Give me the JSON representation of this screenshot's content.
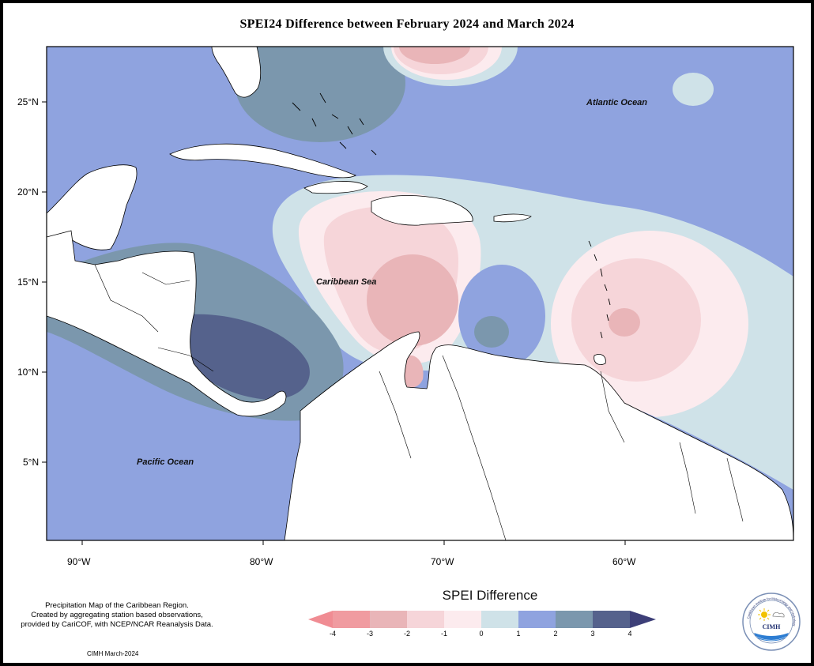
{
  "title": "SPEI24 Difference between February 2024 and March 2024",
  "axes": {
    "x_ticks": [
      "90°W",
      "80°W",
      "70°W",
      "60°W"
    ],
    "y_ticks": [
      "25°N",
      "20°N",
      "15°N",
      "10°N",
      "5°N"
    ]
  },
  "labels": {
    "atlantic": "Atlantic Ocean",
    "caribbean": "Caribbean Sea",
    "pacific": "Pacific Ocean"
  },
  "legend": {
    "title": "SPEI Difference",
    "ticks": [
      "-4",
      "-3",
      "-2",
      "-1",
      "0",
      "1",
      "2",
      "3",
      "4"
    ],
    "colors": [
      "#f09ba0",
      "#e9b5b8",
      "#f6d5d9",
      "#fcebee",
      "#cfe2e8",
      "#8fa3df",
      "#7b97ad",
      "#55628c"
    ]
  },
  "caption": {
    "lines": [
      "Precipitation Map of the Caribbean Region.",
      "Created by aggregating station based observations,",
      "provided by CariCOF, with NCEP/NCAR Reanalysis Data."
    ],
    "credit": "CIMH March-2024"
  },
  "logo": {
    "text": "CIMH",
    "ring_text": "Caribbean Institute for Meteorology and Hydrology"
  }
}
